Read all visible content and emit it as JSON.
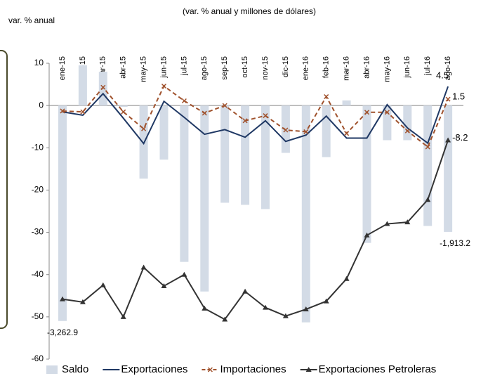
{
  "chart_data": {
    "type": "combo",
    "title": "(var. % anual y millones de dólares)",
    "y_label": "var. % anual",
    "categories": [
      "ene-15",
      "feb-15",
      "mar-15",
      "abr-15",
      "may-15",
      "jun-15",
      "jul-15",
      "ago-15",
      "sep-15",
      "oct-15",
      "nov-15",
      "dic-15",
      "ene-16",
      "feb-16",
      "mar-16",
      "abr-16",
      "may-16",
      "jun-16",
      "jul-16",
      "ago-16"
    ],
    "ylim": [
      -60,
      10
    ],
    "yticks": [
      -60,
      -50,
      -40,
      -30,
      -20,
      -10,
      0,
      10
    ],
    "y2lim": [
      -3840,
      640
    ],
    "legend": "bottom",
    "series": [
      {
        "name": "Saldo",
        "kind": "bar",
        "axis": "y2",
        "color": "#d3dbe6",
        "values": [
          -3262.9,
          608,
          512,
          -20,
          -1107,
          -819,
          -2368,
          -2816,
          -1472,
          -1504,
          -1568,
          -717,
          -3283,
          -781,
          77,
          -2080,
          -525,
          -525,
          -1824,
          -1913.2
        ],
        "value_labels": [
          "-3,262.9",
          null,
          null,
          null,
          null,
          null,
          null,
          null,
          null,
          null,
          null,
          null,
          null,
          null,
          null,
          null,
          null,
          null,
          null,
          "-1,913.2"
        ]
      },
      {
        "name": "Exportaciones",
        "kind": "line",
        "color": "#1f3864",
        "marker": "none",
        "last_label": true,
        "values": [
          -1.5,
          -2.3,
          2.8,
          -3,
          -9,
          1,
          -2.8,
          -6.8,
          -5.7,
          -7.5,
          -3.6,
          -8.5,
          -7,
          -2.5,
          -7.7,
          -7.7,
          0.2,
          -5.3,
          -8.9,
          4.5
        ]
      },
      {
        "name": "Importaciones",
        "kind": "line",
        "color": "#a0522d",
        "dashed": true,
        "marker": "x",
        "last_label": true,
        "values": [
          -1.3,
          -1.5,
          4.3,
          -1.5,
          -5.5,
          4.6,
          1.1,
          -1.8,
          0,
          -3.6,
          -2.4,
          -5.8,
          -6.2,
          2.1,
          -6.6,
          -1.6,
          -1.6,
          -6,
          -9.8,
          1.5
        ]
      },
      {
        "name": "Exportaciones Petroleras",
        "kind": "line",
        "color": "#333333",
        "marker": "triangle",
        "last_label": true,
        "values": [
          -45.8,
          -46.5,
          -42.5,
          -50,
          -38.3,
          -42.7,
          -40,
          -48,
          -50.6,
          -44,
          -47.8,
          -49.8,
          -48.2,
          -46.3,
          -41,
          -30.7,
          -28,
          -27.6,
          -22.3,
          -8.2
        ]
      }
    ]
  }
}
